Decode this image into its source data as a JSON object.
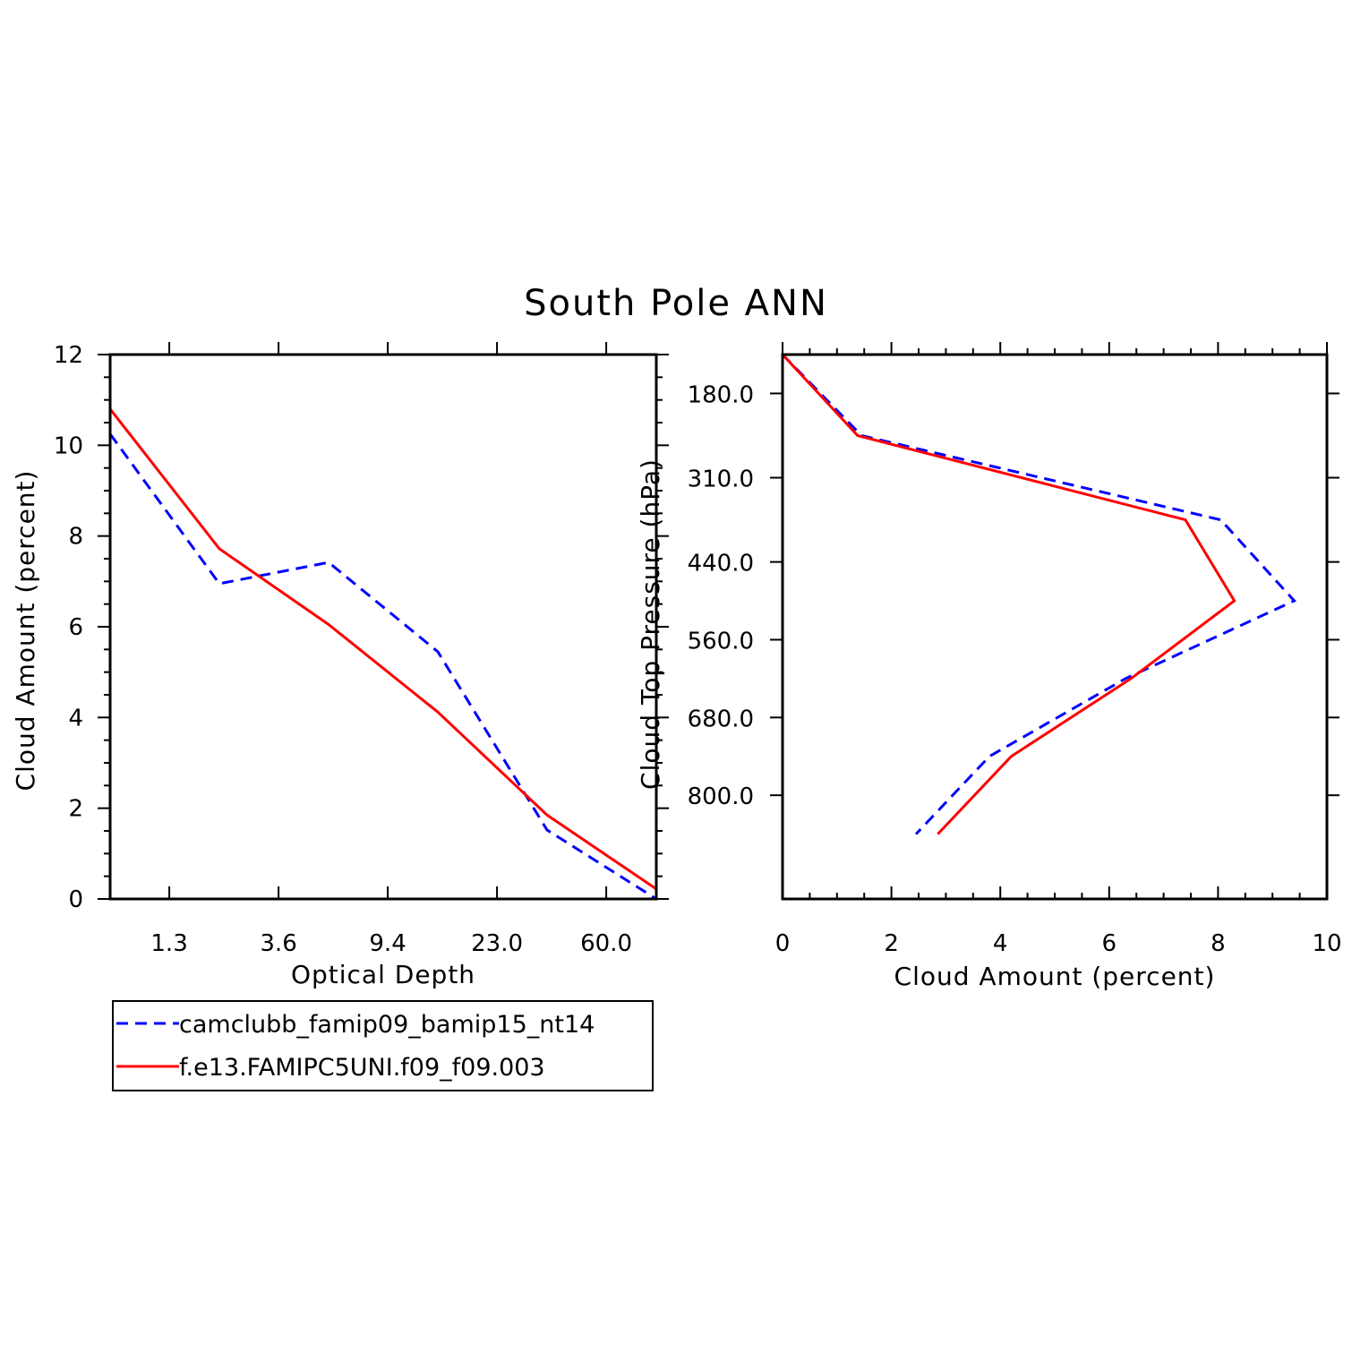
{
  "figure_title": "South Pole ANN",
  "legend": {
    "entries": [
      {
        "label": "camclubb_famip09_bamip15_nt14",
        "color": "#0000ff",
        "dash": true
      },
      {
        "label": "f.e13.FAMIPC5UNI.f09_f09.003",
        "color": "#ff0000",
        "dash": false
      }
    ]
  },
  "chart_data": [
    {
      "type": "line",
      "title": "",
      "xlabel": "Optical Depth",
      "ylabel": "Cloud Amount (percent)",
      "xlim": [
        0,
        6
      ],
      "ylim": [
        0,
        12
      ],
      "x_tick_labels": [
        {
          "pos": 0.65,
          "label": "1.3"
        },
        {
          "pos": 1.85,
          "label": "3.6"
        },
        {
          "pos": 3.05,
          "label": "9.4"
        },
        {
          "pos": 4.25,
          "label": "23.0"
        },
        {
          "pos": 5.45,
          "label": "60.0"
        }
      ],
      "y_ticks": [
        0,
        2,
        4,
        6,
        8,
        10,
        12
      ],
      "x": [
        0,
        1.2,
        2.4,
        3.6,
        4.8,
        6.0
      ],
      "series": [
        {
          "name": "camclubb_famip09_bamip15_nt14",
          "color": "#0000ff",
          "dash": true,
          "values": [
            10.25,
            6.95,
            7.42,
            5.45,
            1.52,
            0.0
          ]
        },
        {
          "name": "f.e13.FAMIPC5UNI.f09_f09.003",
          "color": "#ff0000",
          "dash": false,
          "values": [
            10.8,
            7.72,
            6.05,
            4.12,
            1.85,
            0.22
          ]
        }
      ]
    },
    {
      "type": "line",
      "title": "",
      "xlabel": "Cloud Amount (percent)",
      "ylabel": "Cloud Top Pressure (hPa)",
      "xlim": [
        0,
        10
      ],
      "ylim": [
        120,
        960
      ],
      "y_inverted": true,
      "x_ticks": [
        0,
        2,
        4,
        6,
        8,
        10
      ],
      "y_tick_labels": [
        {
          "pos": 180,
          "label": "180.0"
        },
        {
          "pos": 310,
          "label": "310.0"
        },
        {
          "pos": 440,
          "label": "440.0"
        },
        {
          "pos": 560,
          "label": "560.0"
        },
        {
          "pos": 680,
          "label": "680.0"
        },
        {
          "pos": 800,
          "label": "800.0"
        }
      ],
      "y": [
        120,
        245,
        375,
        500,
        620,
        740,
        860
      ],
      "series": [
        {
          "name": "camclubb_famip09_bamip15_nt14",
          "color": "#0000ff",
          "dash": true,
          "values": [
            0.0,
            1.45,
            8.05,
            9.4,
            6.3,
            3.8,
            2.45
          ]
        },
        {
          "name": "f.e13.FAMIPC5UNI.f09_f09.003",
          "color": "#ff0000",
          "dash": false,
          "values": [
            0.0,
            1.38,
            7.4,
            8.3,
            6.4,
            4.2,
            2.85
          ]
        }
      ]
    }
  ]
}
